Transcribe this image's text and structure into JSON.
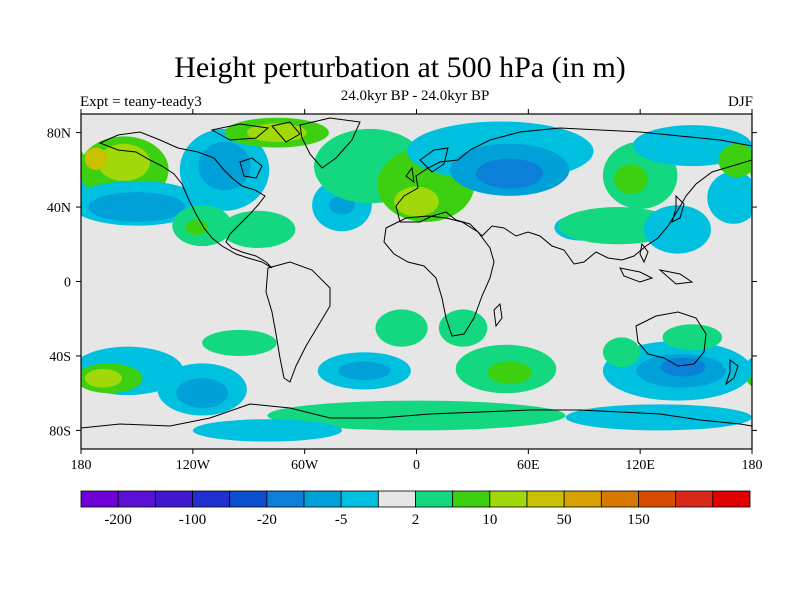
{
  "header": {
    "title": "Height perturbation at 500 hPa (in m)",
    "subtitle": "24.0kyr BP - 24.0kyr BP",
    "experiment": "Expt = teany-teady3",
    "season": "DJF"
  },
  "colors": {
    "neutral": "#e6e6e6",
    "palette": [
      "#7000d8",
      "#5c10d8",
      "#4018d0",
      "#2030d0",
      "#0a50d0",
      "#0c80d8",
      "#00a0d8",
      "#00c0e0",
      "#e6e6e6",
      "#14d880",
      "#3cd010",
      "#a0d80a",
      "#c8c000",
      "#d8a000",
      "#d87800",
      "#d84c00",
      "#d82818",
      "#e00000"
    ]
  },
  "chart_data": {
    "type": "heatmap",
    "projection": "cylindrical-equidistant",
    "xlim": [
      -180,
      180
    ],
    "ylim": [
      -90,
      90
    ],
    "x_ticks": [
      {
        "value": -180,
        "label": "180"
      },
      {
        "value": -120,
        "label": "120W"
      },
      {
        "value": -60,
        "label": "60W"
      },
      {
        "value": 0,
        "label": "0"
      },
      {
        "value": 60,
        "label": "60E"
      },
      {
        "value": 120,
        "label": "120E"
      },
      {
        "value": 180,
        "label": "180"
      }
    ],
    "y_ticks": [
      {
        "value": 80,
        "label": "80N"
      },
      {
        "value": 40,
        "label": "40N"
      },
      {
        "value": 0,
        "label": "0"
      },
      {
        "value": -40,
        "label": "40S"
      },
      {
        "value": -80,
        "label": "80S"
      }
    ],
    "colorbar_labels": [
      {
        "boundary": 1,
        "label": "-200"
      },
      {
        "boundary": 3,
        "label": "-100"
      },
      {
        "boundary": 5,
        "label": "-20"
      },
      {
        "boundary": 7,
        "label": "-5"
      },
      {
        "boundary": 9,
        "label": "2"
      },
      {
        "boundary": 11,
        "label": "10"
      },
      {
        "boundary": 13,
        "label": "50"
      },
      {
        "boundary": 15,
        "label": "150"
      }
    ],
    "anomaly_regions": [
      {
        "lon": -157,
        "lat": 60,
        "rlon": 24,
        "rlat": 18,
        "level": 10
      },
      {
        "lon": -157,
        "lat": 64,
        "rlon": 14,
        "rlat": 10,
        "level": 11
      },
      {
        "lon": -172,
        "lat": 66,
        "rlon": 6,
        "rlat": 6,
        "level": 12
      },
      {
        "lon": -150,
        "lat": 42,
        "rlon": 36,
        "rlat": 12,
        "level": 7
      },
      {
        "lon": -150,
        "lat": 40,
        "rlon": 26,
        "rlat": 8,
        "level": 6
      },
      {
        "lon": -103,
        "lat": 60,
        "rlon": 24,
        "rlat": 22,
        "level": 7
      },
      {
        "lon": -103,
        "lat": 62,
        "rlon": 14,
        "rlat": 13,
        "level": 6
      },
      {
        "lon": -75,
        "lat": 80,
        "rlon": 28,
        "rlat": 8,
        "level": 10
      },
      {
        "lon": -75,
        "lat": 80,
        "rlon": 16,
        "rlat": 5,
        "level": 11
      },
      {
        "lon": -115,
        "lat": 30,
        "rlon": 16,
        "rlat": 11,
        "level": 9
      },
      {
        "lon": -118,
        "lat": 29,
        "rlon": 6,
        "rlat": 4,
        "level": 10
      },
      {
        "lon": -85,
        "lat": 28,
        "rlon": 20,
        "rlat": 10,
        "level": 9
      },
      {
        "lon": -40,
        "lat": 41,
        "rlon": 16,
        "rlat": 14,
        "level": 7
      },
      {
        "lon": -40,
        "lat": 41,
        "rlon": 7,
        "rlat": 5,
        "level": 6
      },
      {
        "lon": -25,
        "lat": 62,
        "rlon": 30,
        "rlat": 20,
        "level": 9
      },
      {
        "lon": 5,
        "lat": 52,
        "rlon": 26,
        "rlat": 20,
        "level": 10
      },
      {
        "lon": 0,
        "lat": 43,
        "rlon": 12,
        "rlat": 8,
        "level": 11
      },
      {
        "lon": 45,
        "lat": 70,
        "rlon": 50,
        "rlat": 16,
        "level": 7
      },
      {
        "lon": 50,
        "lat": 60,
        "rlon": 32,
        "rlat": 14,
        "level": 6
      },
      {
        "lon": 50,
        "lat": 58,
        "rlon": 18,
        "rlat": 8,
        "level": 5
      },
      {
        "lon": 88,
        "lat": 29,
        "rlon": 14,
        "rlat": 7,
        "level": 7
      },
      {
        "lon": 120,
        "lat": 57,
        "rlon": 20,
        "rlat": 18,
        "level": 9
      },
      {
        "lon": 115,
        "lat": 55,
        "rlon": 9,
        "rlat": 8,
        "level": 10
      },
      {
        "lon": 108,
        "lat": 30,
        "rlon": 32,
        "rlat": 10,
        "level": 9
      },
      {
        "lon": 148,
        "lat": 73,
        "rlon": 32,
        "rlat": 11,
        "level": 7
      },
      {
        "lon": 140,
        "lat": 28,
        "rlon": 18,
        "rlat": 13,
        "level": 7
      },
      {
        "lon": 170,
        "lat": 45,
        "rlon": 14,
        "rlat": 14,
        "level": 7
      },
      {
        "lon": 172,
        "lat": 65,
        "rlon": 10,
        "rlat": 9,
        "level": 10
      },
      {
        "lon": -155,
        "lat": -48,
        "rlon": 30,
        "rlat": 13,
        "level": 7
      },
      {
        "lon": -165,
        "lat": -52,
        "rlon": 18,
        "rlat": 8,
        "level": 10
      },
      {
        "lon": -168,
        "lat": -52,
        "rlon": 10,
        "rlat": 5,
        "level": 11
      },
      {
        "lon": -115,
        "lat": -58,
        "rlon": 24,
        "rlat": 14,
        "level": 7
      },
      {
        "lon": -115,
        "lat": -60,
        "rlon": 14,
        "rlat": 8,
        "level": 6
      },
      {
        "lon": -95,
        "lat": -33,
        "rlon": 20,
        "rlat": 7,
        "level": 9
      },
      {
        "lon": -28,
        "lat": -48,
        "rlon": 25,
        "rlat": 10,
        "level": 7
      },
      {
        "lon": -28,
        "lat": -48,
        "rlon": 14,
        "rlat": 5,
        "level": 6
      },
      {
        "lon": -8,
        "lat": -25,
        "rlon": 14,
        "rlat": 10,
        "level": 9
      },
      {
        "lon": 25,
        "lat": -25,
        "rlon": 13,
        "rlat": 10,
        "level": 9
      },
      {
        "lon": 48,
        "lat": -47,
        "rlon": 27,
        "rlat": 13,
        "level": 9
      },
      {
        "lon": 50,
        "lat": -49,
        "rlon": 12,
        "rlat": 6,
        "level": 10
      },
      {
        "lon": 140,
        "lat": -48,
        "rlon": 40,
        "rlat": 16,
        "level": 7
      },
      {
        "lon": 142,
        "lat": -48,
        "rlon": 24,
        "rlat": 9,
        "level": 6
      },
      {
        "lon": 143,
        "lat": -46,
        "rlon": 12,
        "rlat": 5,
        "level": 5
      },
      {
        "lon": 148,
        "lat": -30,
        "rlon": 16,
        "rlat": 7,
        "level": 9
      },
      {
        "lon": 110,
        "lat": -38,
        "rlon": 10,
        "rlat": 8,
        "level": 9
      },
      {
        "lon": 0,
        "lat": -72,
        "rlon": 80,
        "rlat": 8,
        "level": 9
      },
      {
        "lon": 130,
        "lat": -73,
        "rlon": 50,
        "rlat": 7,
        "level": 7
      },
      {
        "lon": -80,
        "lat": -80,
        "rlon": 40,
        "rlat": 6,
        "level": 7
      }
    ]
  }
}
